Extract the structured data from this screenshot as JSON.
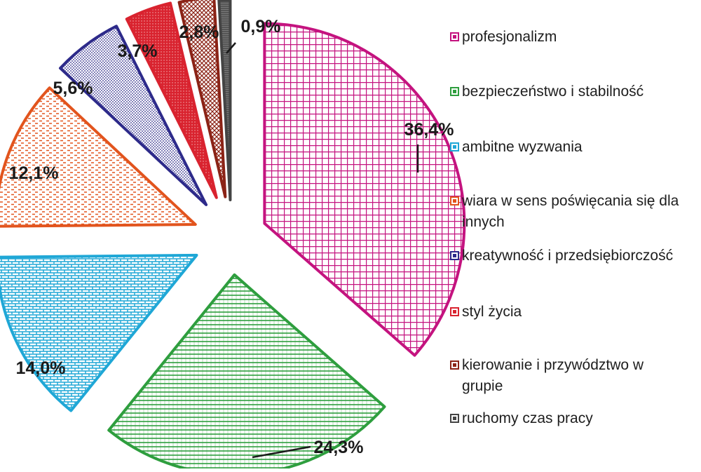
{
  "chart_data": {
    "type": "pie",
    "title": "",
    "slices": [
      {
        "label": "profesjonalizm",
        "value": 36.4,
        "display": "36,4%",
        "color": "#c4137f"
      },
      {
        "label": "bezpieczeństwo i stabilność",
        "value": 24.3,
        "display": "24,3%",
        "color": "#2e9e3e"
      },
      {
        "label": "ambitne wyzwania",
        "value": 14.0,
        "display": "14,0%",
        "color": "#1fa7d6"
      },
      {
        "label": "wiara w sens poświęcania się dla innych",
        "value": 12.1,
        "display": "12,1%",
        "color": "#e2541d"
      },
      {
        "label": "kreatywność i przedsiębiorczość",
        "value": 5.6,
        "display": "5,6%",
        "color": "#2d2a8a"
      },
      {
        "label": "styl życia",
        "value": 3.7,
        "display": "3,7%",
        "color": "#d9232f"
      },
      {
        "label": "kierowanie i przywództwo w grupie",
        "value": 2.8,
        "display": "2,8%",
        "color": "#8b2316"
      },
      {
        "label": "ruchomy czas pracy",
        "value": 0.9,
        "display": "0,9%",
        "color": "#444444"
      }
    ],
    "legend_position": "right"
  }
}
